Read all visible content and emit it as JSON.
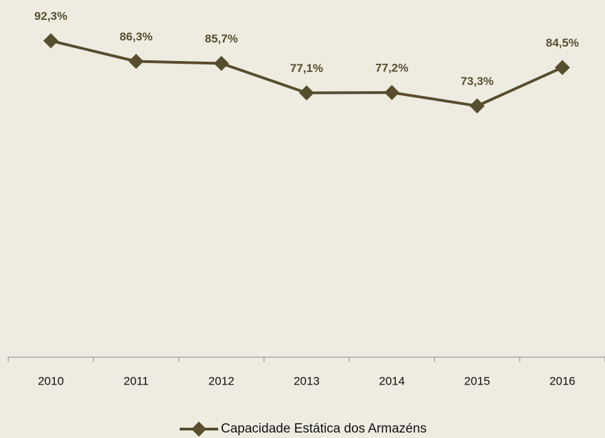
{
  "chart_data": {
    "type": "line",
    "categories": [
      "2010",
      "2011",
      "2012",
      "2013",
      "2014",
      "2015",
      "2016"
    ],
    "series": [
      {
        "name": "Capacidade Estática dos Armazéns",
        "color": "#574e2e",
        "values": [
          92.3,
          86.3,
          85.7,
          77.1,
          77.2,
          73.3,
          84.5
        ],
        "value_labels": [
          "92,3%",
          "86,3%",
          "85,7%",
          "77,1%",
          "77,2%",
          "73,3%",
          "84,5%"
        ]
      }
    ],
    "ylim": [
      0,
      100
    ],
    "legend": "bottom"
  }
}
